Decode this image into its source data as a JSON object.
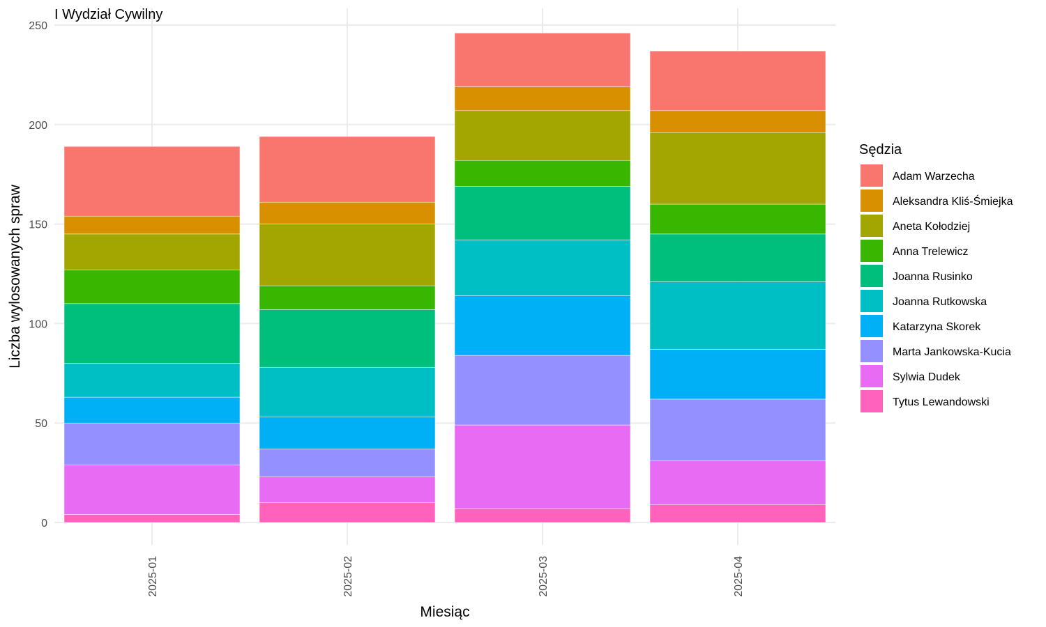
{
  "chart_data": {
    "type": "bar",
    "stacked": true,
    "title": "I Wydział Cywilny",
    "xlabel": "Miesiąc",
    "ylabel": "Liczba wylosowanych spraw",
    "ylim": [
      0,
      250
    ],
    "yticks": [
      0,
      50,
      100,
      150,
      200,
      250
    ],
    "grid": true,
    "legend_position": "right",
    "legend_title": "Sędzia",
    "categories": [
      "2025-01",
      "2025-02",
      "2025-03",
      "2025-04"
    ],
    "series": [
      {
        "name": "Adam Warzecha",
        "color": "#F8766D",
        "values": [
          35,
          33,
          27,
          30
        ]
      },
      {
        "name": "Aleksandra Kliś-Śmiejka",
        "color": "#D89000",
        "values": [
          9,
          11,
          12,
          11
        ]
      },
      {
        "name": "Aneta Kołodziej",
        "color": "#A3A500",
        "values": [
          18,
          31,
          25,
          36
        ]
      },
      {
        "name": "Anna Trelewicz",
        "color": "#39B600",
        "values": [
          17,
          12,
          13,
          15
        ]
      },
      {
        "name": "Joanna Rusinko",
        "color": "#00BF7D",
        "values": [
          30,
          29,
          27,
          24
        ]
      },
      {
        "name": "Joanna Rutkowska",
        "color": "#00BFC4",
        "values": [
          17,
          25,
          28,
          34
        ]
      },
      {
        "name": "Katarzyna Skorek",
        "color": "#00B0F6",
        "values": [
          13,
          16,
          30,
          25
        ]
      },
      {
        "name": "Marta Jankowska-Kucia",
        "color": "#9590FF",
        "values": [
          21,
          14,
          35,
          31
        ]
      },
      {
        "name": "Sylwia Dudek",
        "color": "#E76BF3",
        "values": [
          25,
          13,
          42,
          22
        ]
      },
      {
        "name": "Tytus Lewandowski",
        "color": "#FF62BC",
        "values": [
          4,
          10,
          7,
          9
        ]
      }
    ]
  }
}
